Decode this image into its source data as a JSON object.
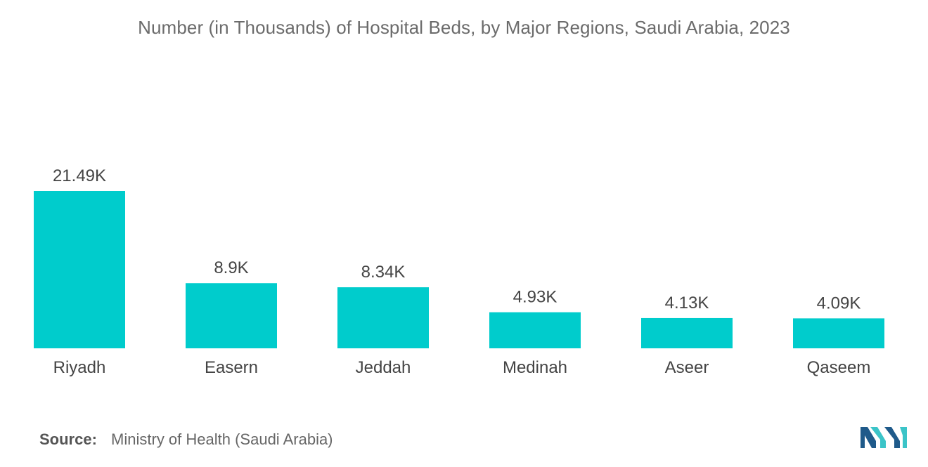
{
  "chart_data": {
    "type": "bar",
    "title": "Number (in Thousands) of Hospital Beds, by Major Regions, Saudi Arabia, 2023",
    "categories": [
      "Riyadh",
      "Easern",
      "Jeddah",
      "Medinah",
      "Aseer",
      "Qaseem"
    ],
    "values": [
      21.49,
      8.9,
      8.34,
      4.93,
      4.13,
      4.09
    ],
    "data_labels": [
      "21.49K",
      "8.9K",
      "8.34K",
      "4.93K",
      "4.13K",
      "4.09K"
    ],
    "xlabel": "",
    "ylabel": "",
    "ylim": [
      0,
      21.49
    ],
    "grid": false,
    "bar_color": "#00cccc"
  },
  "source": {
    "label": "Source:",
    "text": "Ministry of Health (Saudi Arabia)"
  },
  "colors": {
    "bar": "#00cccc",
    "logo_dark": "#1f5a8a",
    "logo_light": "#3bc4c8"
  }
}
